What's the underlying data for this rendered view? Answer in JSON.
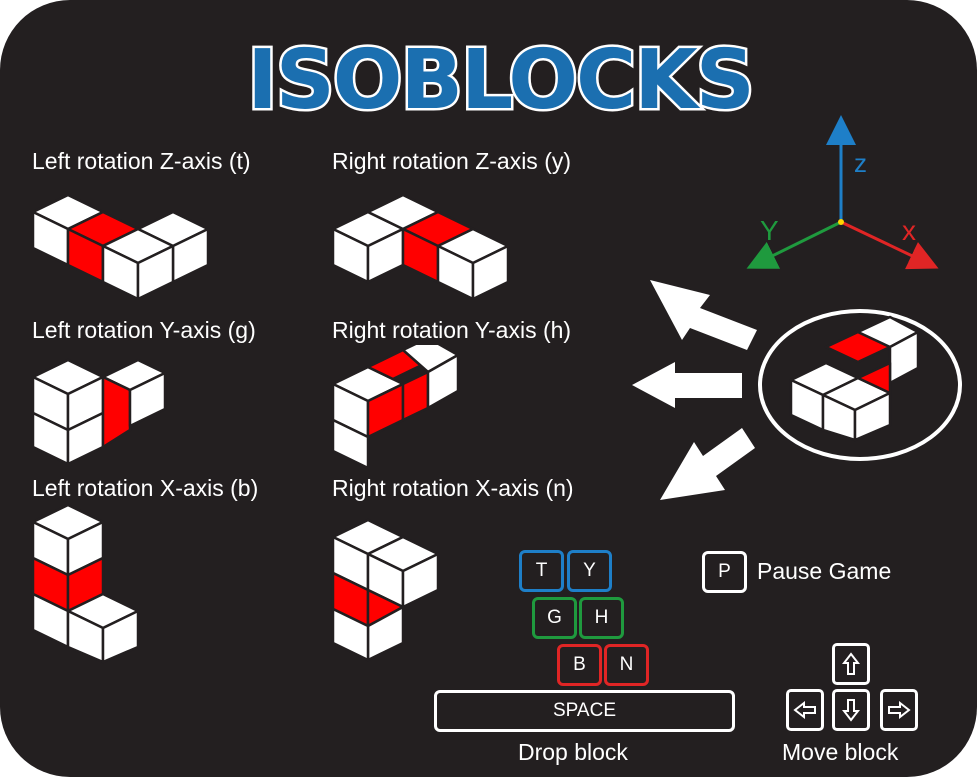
{
  "title": "ISOBLOCKS",
  "rotations": {
    "z_left": "Left rotation Z-axis (t)",
    "z_right": "Right rotation Z-axis (y)",
    "y_left": "Left rotation Y-axis (g)",
    "y_right": "Right rotation Y-axis (h)",
    "x_left": "Left rotation X-axis (b)",
    "x_right": "Right rotation X-axis (n)"
  },
  "axes": {
    "z": "z",
    "y": "Y",
    "x": "x"
  },
  "keys": {
    "t": "T",
    "y": "Y",
    "g": "G",
    "h": "H",
    "b": "B",
    "n": "N",
    "p": "P",
    "space": "SPACE"
  },
  "pause_label": "Pause Game",
  "drop_label": "Drop block",
  "move_label": "Move block",
  "colors": {
    "background": "#231f20",
    "title_fill": "#1b6fb0",
    "highlight": "#ff0000",
    "z_axis": "#1e7fc8",
    "y_axis": "#1f9a3e",
    "x_axis": "#e02525"
  },
  "icons": {
    "up": "arrow-up-icon",
    "down": "arrow-down-icon",
    "left": "arrow-left-icon",
    "right": "arrow-right-icon"
  }
}
